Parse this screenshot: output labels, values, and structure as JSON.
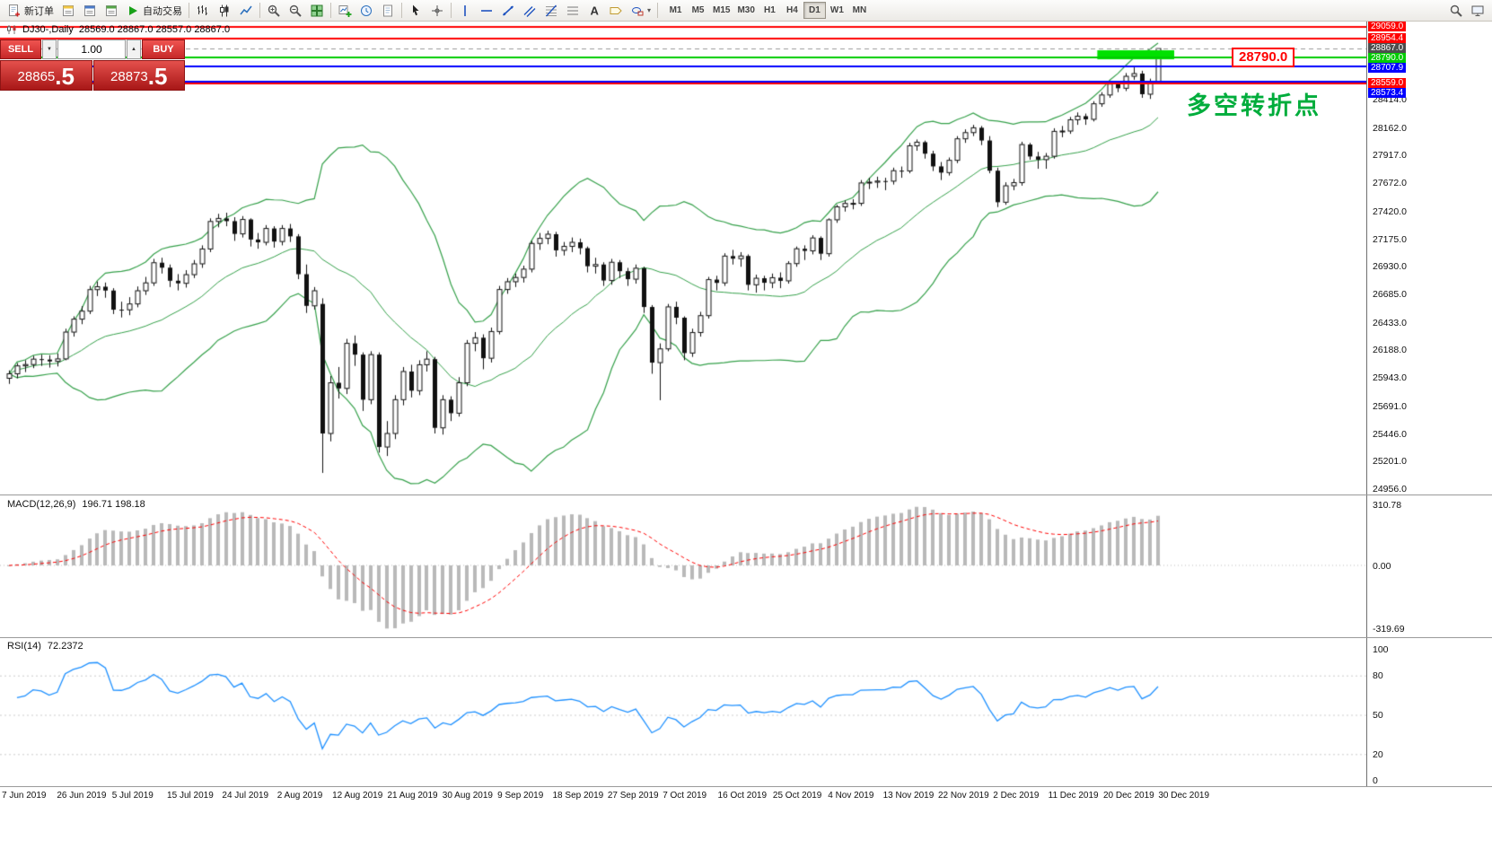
{
  "toolbar": {
    "buttons": [
      {
        "name": "new-order",
        "icon": "doc-plus",
        "label": "新订单"
      },
      {
        "name": "symbols-window",
        "icon": "win-yellow"
      },
      {
        "name": "market-watch",
        "icon": "win-blue"
      },
      {
        "name": "data-window",
        "icon": "win-green"
      },
      {
        "name": "auto-trading",
        "icon": "play",
        "label": "自动交易"
      },
      {
        "sep": true
      },
      {
        "name": "bar-chart-mode",
        "icon": "bar-chart"
      },
      {
        "name": "candlestick-mode",
        "icon": "candle-chart"
      },
      {
        "name": "line-chart-mode",
        "icon": "line-chart"
      },
      {
        "sep": true
      },
      {
        "name": "zoom-in",
        "icon": "zoom-in"
      },
      {
        "name": "zoom-out",
        "icon": "zoom-out"
      },
      {
        "name": "tile-windows",
        "icon": "tile"
      },
      {
        "sep": true
      },
      {
        "name": "new-chart",
        "icon": "chart-plus"
      },
      {
        "name": "profiles",
        "icon": "clock"
      },
      {
        "name": "templates",
        "icon": "doc"
      },
      {
        "sep": true
      },
      {
        "name": "cursor-tool",
        "icon": "cursor"
      },
      {
        "name": "crosshair-tool",
        "icon": "crosshair"
      },
      {
        "sep": true
      },
      {
        "name": "vertical-line-tool",
        "icon": "vline"
      },
      {
        "name": "horizontal-line-tool",
        "icon": "hline"
      },
      {
        "name": "trendline-tool",
        "icon": "trend"
      },
      {
        "name": "channel-tool",
        "icon": "channel"
      },
      {
        "name": "fibonacci-tool",
        "icon": "fibo"
      },
      {
        "name": "ruler-tool",
        "icon": "ruler"
      },
      {
        "name": "text-tool",
        "icon": "text"
      },
      {
        "name": "label-tool",
        "icon": "label"
      },
      {
        "name": "shapes-tool",
        "icon": "shapes",
        "caret": true
      },
      {
        "sep": true
      }
    ],
    "timeframes": [
      "M1",
      "M5",
      "M15",
      "M30",
      "H1",
      "H4",
      "D1",
      "W1",
      "MN"
    ],
    "active_timeframe": "D1",
    "right_buttons": [
      {
        "name": "search",
        "icon": "search"
      },
      {
        "name": "terminal",
        "icon": "monitor"
      }
    ]
  },
  "chart": {
    "symbol_period": "DJ30-,Daily",
    "ohlc": "28569.0 28867.0 28557.0 28867.0",
    "annotation": {
      "text": "多空转折点",
      "color": "#00ad3c"
    },
    "price_callout": {
      "text": "28790.0",
      "color": "#ff0000"
    }
  },
  "trade_panel": {
    "sell_label": "SELL",
    "buy_label": "BUY",
    "lot_value": "1.00",
    "lot_down_glyph": "▼",
    "lot_up_glyph": "▲",
    "bid_int": "28865",
    "bid_dec": ".5",
    "ask_int": "28873",
    "ask_dec": ".5"
  },
  "macd": {
    "label": "MACD(12,26,9)",
    "value": "196.71 198.18",
    "params": {
      "fast": 12,
      "slow": 26,
      "signal": 9
    },
    "scale": [
      {
        "v": 310.78,
        "t": "310.78"
      },
      {
        "v": 0,
        "t": "0.00"
      },
      {
        "v": -319.69,
        "t": "-319.69"
      }
    ],
    "histogram_color": "#b9b9b9",
    "signal_color": "#ff0000"
  },
  "rsi": {
    "label": "RSI(14)",
    "value": "72.2372",
    "period": 14,
    "scale": [
      {
        "v": 100,
        "t": "100"
      },
      {
        "v": 80,
        "t": "80"
      },
      {
        "v": 50,
        "t": "50"
      },
      {
        "v": 20,
        "t": "20"
      },
      {
        "v": 0,
        "t": "0"
      }
    ],
    "levels": [
      80,
      50,
      20
    ],
    "line_color": "#1E90FF"
  },
  "chart_data": {
    "type": "candlestick",
    "symbol": "DJ30-",
    "timeframe": "Daily",
    "up_color": "#ffffff",
    "down_color": "#111111",
    "outline_color": "#111111",
    "bollinger": {
      "period": 20,
      "deviation": 2,
      "color": "#35a04a"
    },
    "y_ticks": [
      "28414.0",
      "28162.0",
      "27917.0",
      "27672.0",
      "27420.0",
      "27175.0",
      "26930.0",
      "26685.0",
      "26433.0",
      "26188.0",
      "25943.0",
      "25691.0",
      "25446.0",
      "25201.0",
      "24956.0"
    ],
    "x_labels": [
      "7 Jun 2019",
      "26 Jun 2019",
      "5 Jul 2019",
      "15 Jul 2019",
      "24 Jul 2019",
      "2 Aug 2019",
      "12 Aug 2019",
      "21 Aug 2019",
      "30 Aug 2019",
      "9 Sep 2019",
      "18 Sep 2019",
      "27 Sep 2019",
      "7 Oct 2019",
      "16 Oct 2019",
      "25 Oct 2019",
      "4 Nov 2019",
      "13 Nov 2019",
      "22 Nov 2019",
      "2 Dec 2019",
      "11 Dec 2019",
      "20 Dec 2019",
      "30 Dec 2019"
    ],
    "levels": [
      {
        "price": 29059.0,
        "label": "29059.0",
        "color": "#ff0000",
        "width": 2
      },
      {
        "price": 28954.4,
        "label": "28954.4",
        "color": "#ff0000",
        "width": 2
      },
      {
        "price": 28867.0,
        "label": "28867.0",
        "color": "#9a9a9a",
        "width": 1,
        "dash": true,
        "label_bg": "#4d4d4d"
      },
      {
        "price": 28790.0,
        "label": "28790.0",
        "color": "#00cc00",
        "width": 2
      },
      {
        "price": 28707.9,
        "label": "28707.9",
        "color": "#0000ff",
        "width": 2
      },
      {
        "price": 28559.0,
        "label": "28559.0",
        "color": "#ff0000",
        "width": 2
      },
      {
        "price": 28573.4,
        "label": "28573.4",
        "color": "#0000ff",
        "width": 2
      }
    ],
    "zone": {
      "from_index": 136,
      "to_index": 143,
      "price_top": 28852,
      "price_bottom": 28772,
      "color": "#00e100"
    },
    "candles": [
      [
        25940,
        26010,
        25890,
        25980
      ],
      [
        25980,
        26075,
        25940,
        26050
      ],
      [
        26050,
        26100,
        25995,
        26062
      ],
      [
        26062,
        26140,
        26030,
        26110
      ],
      [
        26110,
        26150,
        26050,
        26106
      ],
      [
        26106,
        26145,
        26035,
        26090
      ],
      [
        26090,
        26160,
        26045,
        26112
      ],
      [
        26112,
        26380,
        26100,
        26350
      ],
      [
        26350,
        26490,
        26310,
        26465
      ],
      [
        26465,
        26580,
        26420,
        26536
      ],
      [
        26536,
        26760,
        26510,
        26727
      ],
      [
        26727,
        26800,
        26670,
        26753
      ],
      [
        26753,
        26790,
        26655,
        26719
      ],
      [
        26719,
        26740,
        26510,
        26549
      ],
      [
        26549,
        26620,
        26480,
        26548
      ],
      [
        26548,
        26660,
        26500,
        26600
      ],
      [
        26600,
        26755,
        26570,
        26717
      ],
      [
        26717,
        26840,
        26680,
        26787
      ],
      [
        26787,
        27000,
        26760,
        26966
      ],
      [
        26966,
        27010,
        26870,
        26922
      ],
      [
        26922,
        26950,
        26750,
        26806
      ],
      [
        26806,
        26865,
        26720,
        26783
      ],
      [
        26783,
        26900,
        26745,
        26860
      ],
      [
        26860,
        26990,
        26830,
        26956
      ],
      [
        26956,
        27120,
        26920,
        27088
      ],
      [
        27088,
        27360,
        27060,
        27332
      ],
      [
        27332,
        27400,
        27280,
        27359
      ],
      [
        27359,
        27410,
        27290,
        27335
      ],
      [
        27335,
        27370,
        27160,
        27222
      ],
      [
        27222,
        27380,
        27190,
        27350
      ],
      [
        27350,
        27360,
        27110,
        27172
      ],
      [
        27172,
        27230,
        27090,
        27147
      ],
      [
        27147,
        27300,
        27120,
        27270
      ],
      [
        27270,
        27290,
        27100,
        27154
      ],
      [
        27154,
        27300,
        27120,
        27270
      ],
      [
        27270,
        27310,
        27150,
        27200
      ],
      [
        27200,
        27220,
        26820,
        26864
      ],
      [
        26864,
        26950,
        26520,
        26583
      ],
      [
        26583,
        26750,
        26550,
        26717
      ],
      [
        26600,
        26650,
        25100,
        25450
      ],
      [
        25450,
        25960,
        25380,
        25900
      ],
      [
        25900,
        26040,
        25760,
        25850
      ],
      [
        25850,
        26290,
        25800,
        26250
      ],
      [
        26250,
        26320,
        26050,
        26150
      ],
      [
        26150,
        26170,
        25650,
        25750
      ],
      [
        25750,
        26180,
        25710,
        26150
      ],
      [
        26150,
        26170,
        25280,
        25330
      ],
      [
        25330,
        25560,
        25250,
        25450
      ],
      [
        25450,
        25790,
        25400,
        25750
      ],
      [
        25750,
        26040,
        25700,
        26000
      ],
      [
        26000,
        26060,
        25770,
        25830
      ],
      [
        25830,
        26100,
        25790,
        26060
      ],
      [
        26060,
        26180,
        26000,
        26110
      ],
      [
        26110,
        26130,
        25450,
        25500
      ],
      [
        25500,
        25790,
        25440,
        25750
      ],
      [
        25750,
        25780,
        25560,
        25630
      ],
      [
        25630,
        25950,
        25600,
        25900
      ],
      [
        25900,
        26280,
        25870,
        26250
      ],
      [
        26250,
        26350,
        26180,
        26300
      ],
      [
        26300,
        26330,
        26020,
        26118
      ],
      [
        26118,
        26390,
        26080,
        26355
      ],
      [
        26355,
        26760,
        26330,
        26728
      ],
      [
        26728,
        26830,
        26690,
        26797
      ],
      [
        26797,
        26870,
        26750,
        26835
      ],
      [
        26835,
        26940,
        26790,
        26909
      ],
      [
        26909,
        27160,
        26880,
        27137
      ],
      [
        27137,
        27230,
        27080,
        27182
      ],
      [
        27182,
        27250,
        27130,
        27219
      ],
      [
        27219,
        27240,
        27020,
        27076
      ],
      [
        27076,
        27150,
        27030,
        27111
      ],
      [
        27111,
        27190,
        27060,
        27147
      ],
      [
        27147,
        27180,
        27040,
        27095
      ],
      [
        27095,
        27110,
        26880,
        26935
      ],
      [
        26935,
        27010,
        26870,
        26950
      ],
      [
        26950,
        26970,
        26760,
        26808
      ],
      [
        26808,
        27000,
        26770,
        26970
      ],
      [
        26970,
        26990,
        26830,
        26891
      ],
      [
        26891,
        26920,
        26760,
        26820
      ],
      [
        26820,
        26950,
        26780,
        26917
      ],
      [
        26917,
        26930,
        26520,
        26573
      ],
      [
        26573,
        26590,
        25980,
        26079
      ],
      [
        26079,
        26250,
        25745,
        26201
      ],
      [
        26201,
        26600,
        26180,
        26574
      ],
      [
        26574,
        26620,
        26420,
        26478
      ],
      [
        26478,
        26490,
        26100,
        26164
      ],
      [
        26164,
        26380,
        26130,
        26346
      ],
      [
        26346,
        26530,
        26310,
        26496
      ],
      [
        26496,
        26840,
        26470,
        26816
      ],
      [
        26816,
        26850,
        26720,
        26787
      ],
      [
        26787,
        27050,
        26760,
        27025
      ],
      [
        27025,
        27080,
        26950,
        27002
      ],
      [
        27002,
        27060,
        26930,
        27026
      ],
      [
        27026,
        27040,
        26720,
        26770
      ],
      [
        26770,
        26860,
        26700,
        26828
      ],
      [
        26828,
        26850,
        26720,
        26788
      ],
      [
        26788,
        26870,
        26740,
        26833
      ],
      [
        26833,
        26880,
        26740,
        26805
      ],
      [
        26805,
        26980,
        26780,
        26958
      ],
      [
        26958,
        27110,
        26930,
        27090
      ],
      [
        27090,
        27120,
        26990,
        27071
      ],
      [
        27071,
        27210,
        27040,
        27186
      ],
      [
        27186,
        27200,
        26990,
        27046
      ],
      [
        27046,
        27360,
        27020,
        27347
      ],
      [
        27347,
        27480,
        27320,
        27462
      ],
      [
        27462,
        27520,
        27420,
        27492
      ],
      [
        27492,
        27530,
        27440,
        27493
      ],
      [
        27493,
        27700,
        27470,
        27674
      ],
      [
        27674,
        27720,
        27620,
        27681
      ],
      [
        27681,
        27730,
        27630,
        27691
      ],
      [
        27691,
        27720,
        27610,
        27690
      ],
      [
        27690,
        27810,
        27660,
        27783
      ],
      [
        27783,
        27820,
        27720,
        27781
      ],
      [
        27781,
        28030,
        27760,
        28004
      ],
      [
        28004,
        28060,
        27960,
        28036
      ],
      [
        28036,
        28050,
        27890,
        27934
      ],
      [
        27934,
        27960,
        27780,
        27821
      ],
      [
        27821,
        27860,
        27700,
        27766
      ],
      [
        27766,
        27900,
        27740,
        27875
      ],
      [
        27875,
        28090,
        27850,
        28066
      ],
      [
        28066,
        28150,
        28030,
        28121
      ],
      [
        28121,
        28190,
        28090,
        28164
      ],
      [
        28164,
        28180,
        28010,
        28051
      ],
      [
        28051,
        28090,
        27760,
        27783
      ],
      [
        27783,
        27810,
        27460,
        27503
      ],
      [
        27503,
        27680,
        27480,
        27649
      ],
      [
        27649,
        27710,
        27610,
        27677
      ],
      [
        27677,
        28040,
        27650,
        28015
      ],
      [
        28015,
        28030,
        27880,
        27909
      ],
      [
        27909,
        27950,
        27800,
        27881
      ],
      [
        27881,
        27940,
        27800,
        27911
      ],
      [
        27911,
        28160,
        27890,
        28132
      ],
      [
        28132,
        28180,
        28080,
        28135
      ],
      [
        28135,
        28260,
        28110,
        28235
      ],
      [
        28235,
        28300,
        28190,
        28267
      ],
      [
        28267,
        28290,
        28190,
        28239
      ],
      [
        28239,
        28400,
        28220,
        28377
      ],
      [
        28377,
        28480,
        28350,
        28455
      ],
      [
        28455,
        28580,
        28430,
        28552
      ],
      [
        28552,
        28580,
        28480,
        28515
      ],
      [
        28515,
        28650,
        28490,
        28621
      ],
      [
        28621,
        28700,
        28590,
        28645
      ],
      [
        28645,
        28670,
        28430,
        28462
      ],
      [
        28462,
        28600,
        28420,
        28569
      ],
      [
        28569,
        28867,
        28557,
        28867
      ]
    ]
  }
}
